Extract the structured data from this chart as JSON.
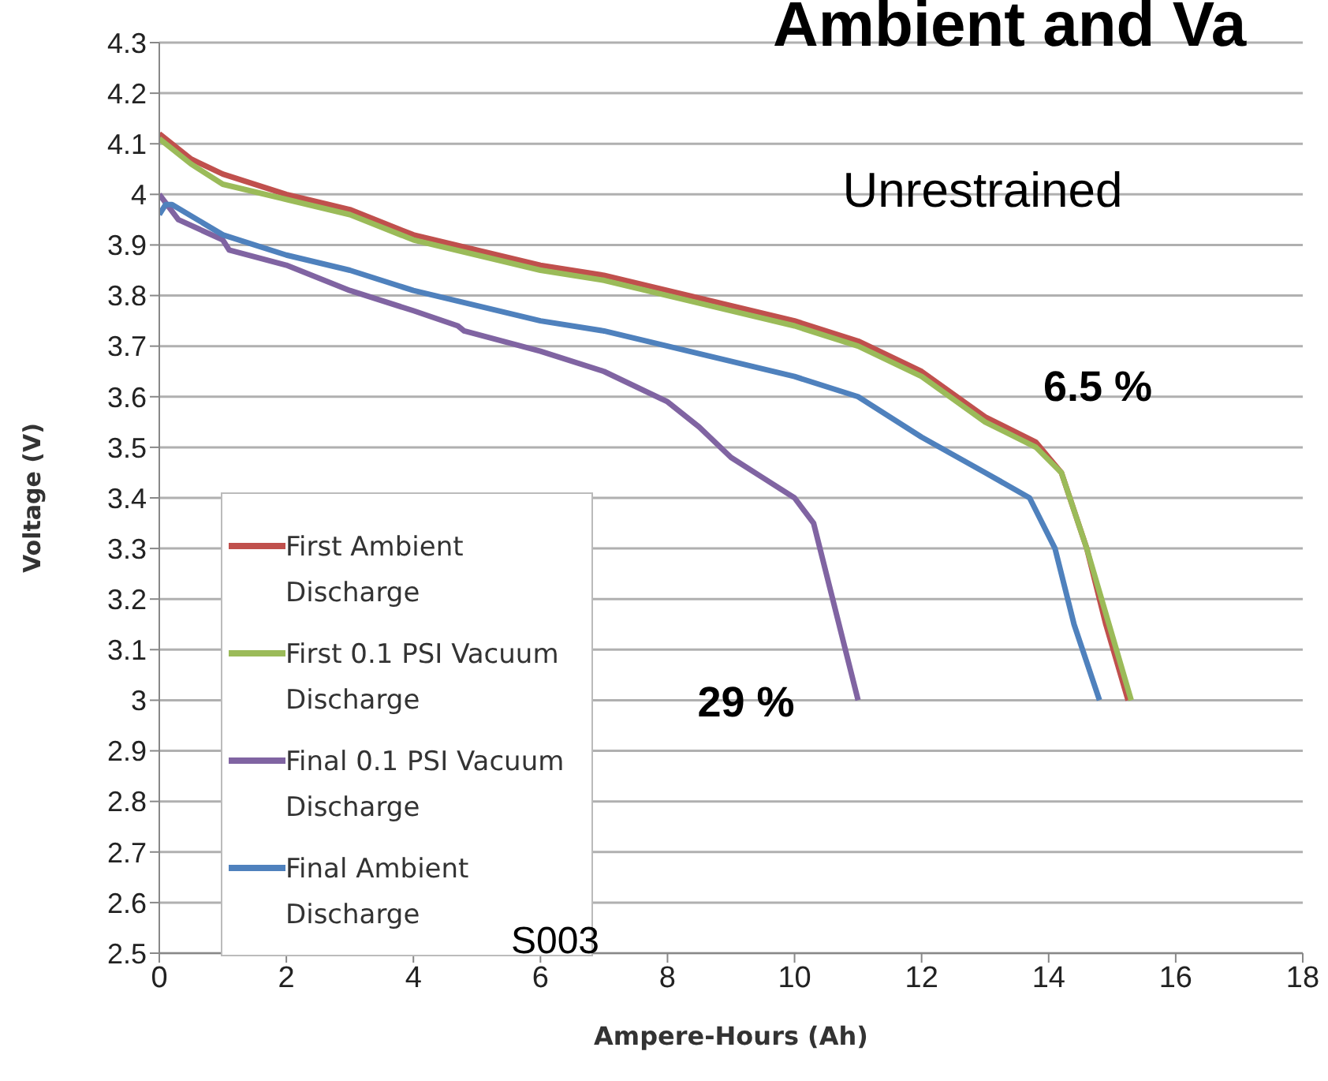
{
  "chart_data": {
    "type": "line",
    "title": "Ambient and Va",
    "xlabel": "Ampere-Hours (Ah)",
    "ylabel": "Voltage (V)",
    "xlim": [
      0,
      18
    ],
    "xticks": [
      0,
      2,
      4,
      6,
      8,
      10,
      12,
      14,
      16,
      18
    ],
    "ylim": [
      2.5,
      4.3
    ],
    "yticks": [
      2.5,
      2.6,
      2.7,
      2.8,
      2.9,
      3,
      3.1,
      3.2,
      3.3,
      3.4,
      3.5,
      3.6,
      3.7,
      3.8,
      3.9,
      4,
      4.1,
      4.2,
      4.3
    ],
    "grid": "y",
    "legend": "bottom left",
    "marker": "none",
    "line_style": "solid",
    "annotations": [
      "Unrestrained",
      "6.5 %",
      "29 %",
      "S003"
    ],
    "series": [
      {
        "name": "First Ambient Discharge",
        "color": "#c0504d",
        "x": [
          0,
          0.5,
          1,
          2,
          3,
          4,
          5,
          6,
          7,
          8,
          9,
          10,
          11,
          12,
          13,
          13.8,
          14.2,
          14.6,
          14.9,
          15.25
        ],
        "values": [
          4.12,
          4.07,
          4.04,
          4.0,
          3.97,
          3.92,
          3.89,
          3.86,
          3.84,
          3.81,
          3.78,
          3.75,
          3.71,
          3.65,
          3.56,
          3.51,
          3.45,
          3.3,
          3.15,
          3.0
        ]
      },
      {
        "name": "First 0.1 PSI Vacuum Discharge",
        "color": "#9bbb59",
        "x": [
          0,
          0.5,
          1,
          2,
          3,
          4,
          5,
          6,
          7,
          8,
          9,
          10,
          11,
          12,
          13,
          13.8,
          14.2,
          14.6,
          14.95,
          15.3
        ],
        "values": [
          4.11,
          4.06,
          4.02,
          3.99,
          3.96,
          3.91,
          3.88,
          3.85,
          3.83,
          3.8,
          3.77,
          3.74,
          3.7,
          3.64,
          3.55,
          3.5,
          3.45,
          3.3,
          3.15,
          3.0
        ]
      },
      {
        "name": "Final 0.1 PSI Vacuum Discharge",
        "color": "#8064a2",
        "x": [
          0,
          0.3,
          1,
          1.1,
          2,
          3,
          4,
          4.7,
          4.8,
          6,
          7,
          8,
          8.5,
          9,
          9.5,
          10,
          10.3,
          10.6,
          10.8,
          11.0
        ],
        "values": [
          4.0,
          3.95,
          3.91,
          3.89,
          3.86,
          3.81,
          3.77,
          3.74,
          3.73,
          3.69,
          3.65,
          3.59,
          3.54,
          3.48,
          3.44,
          3.4,
          3.35,
          3.2,
          3.1,
          3.0
        ]
      },
      {
        "name": "Final Ambient Discharge",
        "color": "#4f81bd",
        "x": [
          0,
          0.1,
          0.2,
          1,
          2,
          3,
          4,
          5,
          6,
          7,
          8,
          9,
          10,
          11,
          12,
          13,
          13.7,
          14.1,
          14.4,
          14.8
        ],
        "values": [
          3.96,
          3.98,
          3.98,
          3.92,
          3.88,
          3.85,
          3.81,
          3.78,
          3.75,
          3.73,
          3.7,
          3.67,
          3.64,
          3.6,
          3.52,
          3.45,
          3.4,
          3.3,
          3.15,
          3.0
        ]
      }
    ]
  }
}
